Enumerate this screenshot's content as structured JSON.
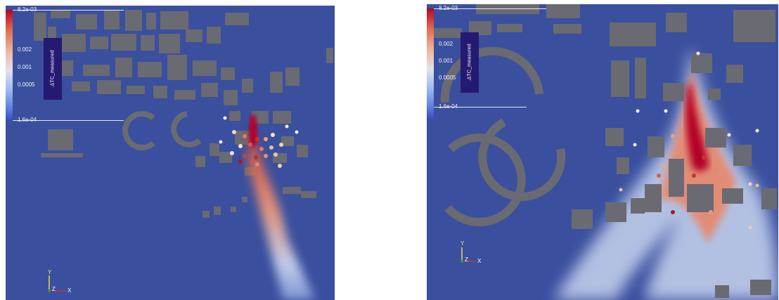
{
  "views": [
    {
      "colorbar": {
        "title": ".ΔTC_measured",
        "max_label": "8.2e-03",
        "min_label": "1.6e-04",
        "tick_labels": [
          "0.002",
          "0.001",
          "0.0005"
        ]
      },
      "axes": {
        "x": "X",
        "y": "Y",
        "z": "Z"
      }
    },
    {
      "colorbar": {
        "title": ".ΔTC_measured",
        "max_label": "8.2e-03",
        "min_label": "1.6e-04",
        "tick_labels": [
          "0.002",
          "0.001",
          "0.0005"
        ]
      },
      "axes": {
        "x": "X",
        "y": "Y",
        "z": "Z"
      }
    }
  ],
  "colors": {
    "background": "#3a4f9e",
    "buildings": "#6a6a72",
    "plume_high": "#b40426",
    "plume_mid": "#e8805f",
    "plume_low": "#d6dcee",
    "axis_x": "#d03030",
    "axis_y": "#e8d84a",
    "axis_z": "#2e9a4a"
  }
}
